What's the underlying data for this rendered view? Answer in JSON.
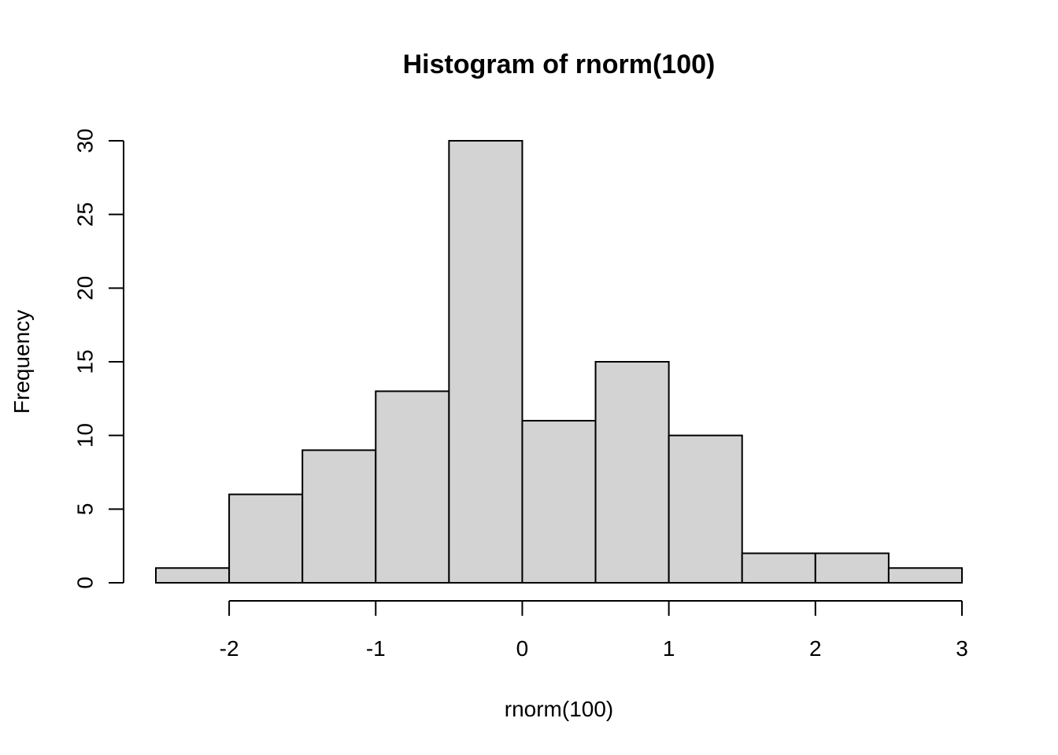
{
  "chart_data": {
    "type": "bar",
    "title": "Histogram of rnorm(100)",
    "xlabel": "rnorm(100)",
    "ylabel": "Frequency",
    "bins": [
      {
        "x0": -2.5,
        "x1": -2.0,
        "count": 1
      },
      {
        "x0": -2.0,
        "x1": -1.5,
        "count": 6
      },
      {
        "x0": -1.5,
        "x1": -1.0,
        "count": 9
      },
      {
        "x0": -1.0,
        "x1": -0.5,
        "count": 13
      },
      {
        "x0": -0.5,
        "x1": 0.0,
        "count": 30
      },
      {
        "x0": 0.0,
        "x1": 0.5,
        "count": 11
      },
      {
        "x0": 0.5,
        "x1": 1.0,
        "count": 15
      },
      {
        "x0": 1.0,
        "x1": 1.5,
        "count": 10
      },
      {
        "x0": 1.5,
        "x1": 2.0,
        "count": 2
      },
      {
        "x0": 2.0,
        "x1": 2.5,
        "count": 2
      },
      {
        "x0": 2.5,
        "x1": 3.0,
        "count": 1
      }
    ],
    "xlim": [
      -2.5,
      3.0
    ],
    "ylim": [
      0,
      30
    ],
    "x_ticks": [
      -2,
      -1,
      0,
      1,
      2,
      3
    ],
    "x_tick_labels": [
      "-2",
      "-1",
      "0",
      "1",
      "2",
      "3"
    ],
    "y_ticks": [
      0,
      5,
      10,
      15,
      20,
      25,
      30
    ],
    "y_tick_labels": [
      "0",
      "5",
      "10",
      "15",
      "20",
      "25",
      "30"
    ],
    "bar_fill": "#d3d3d3",
    "bar_stroke": "#000000",
    "grid": false,
    "legend": "none"
  }
}
